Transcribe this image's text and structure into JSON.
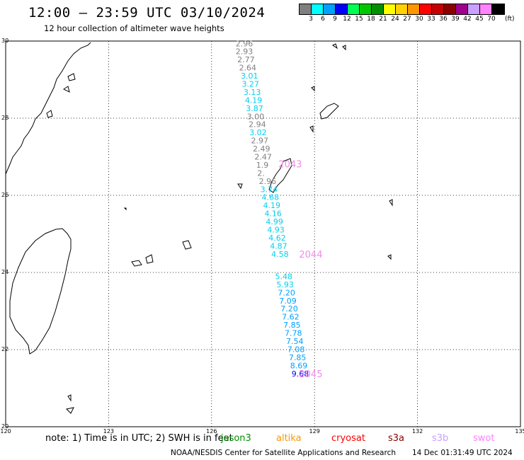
{
  "header": {
    "title": "12:00 – 23:59 UTC 03/10/2024",
    "subtitle": "12 hour collection of altimeter wave heights"
  },
  "colorbar": {
    "colors": [
      "#7f7f7f",
      "#00ffff",
      "#00a0ff",
      "#0000ff",
      "#00ff55",
      "#00c800",
      "#009000",
      "#ffff00",
      "#ffd200",
      "#ff9600",
      "#ff0000",
      "#c80000",
      "#8c0000",
      "#a0008c",
      "#c8a0ff",
      "#ff82ff",
      "#000000"
    ],
    "labels": [
      "3",
      "6",
      "9",
      "12",
      "15",
      "18",
      "21",
      "24",
      "27",
      "30",
      "33",
      "36",
      "39",
      "42",
      "45",
      "70"
    ],
    "unit": "(ft)"
  },
  "map": {
    "lon_range": [
      120,
      135
    ],
    "lat_range": [
      20,
      30
    ],
    "lon_ticks": [
      "120",
      "123",
      "126",
      "129",
      "132",
      "135"
    ],
    "lat_ticks": [
      "30",
      "28",
      "26",
      "24",
      "22",
      "20"
    ],
    "grid": true
  },
  "track": [
    {
      "lon": 126.7,
      "lat": 29.94,
      "label": "2.96",
      "color": "#808080"
    },
    {
      "lon": 126.7,
      "lat": 29.73,
      "label": "2.93",
      "color": "#808080"
    },
    {
      "lon": 126.75,
      "lat": 29.52,
      "label": "2.77",
      "color": "#808080"
    },
    {
      "lon": 126.8,
      "lat": 29.31,
      "label": "2.64",
      "color": "#808080"
    },
    {
      "lon": 126.85,
      "lat": 29.1,
      "label": "3.01",
      "color": "#00d0f0"
    },
    {
      "lon": 126.88,
      "lat": 28.89,
      "label": "3.27",
      "color": "#00d0f0"
    },
    {
      "lon": 126.93,
      "lat": 28.68,
      "label": "3.13",
      "color": "#00d0f0"
    },
    {
      "lon": 126.97,
      "lat": 28.47,
      "label": "4.19",
      "color": "#00d0f0"
    },
    {
      "lon": 127.0,
      "lat": 28.26,
      "label": "3.87",
      "color": "#00d0f0"
    },
    {
      "lon": 127.03,
      "lat": 28.05,
      "label": "3.00",
      "color": "#808080"
    },
    {
      "lon": 127.08,
      "lat": 27.84,
      "label": "2.94",
      "color": "#808080"
    },
    {
      "lon": 127.1,
      "lat": 27.63,
      "label": "3.02",
      "color": "#00d0f0"
    },
    {
      "lon": 127.15,
      "lat": 27.42,
      "label": "2.97",
      "color": "#808080"
    },
    {
      "lon": 127.2,
      "lat": 27.21,
      "label": "2.49",
      "color": "#808080"
    },
    {
      "lon": 127.25,
      "lat": 27.0,
      "label": "2.47",
      "color": "#808080"
    },
    {
      "lon": 127.3,
      "lat": 26.79,
      "label": "1.9",
      "color": "#808080"
    },
    {
      "lon": 127.33,
      "lat": 26.58,
      "label": "2.",
      "color": "#808080"
    },
    {
      "lon": 127.38,
      "lat": 26.37,
      "label": "2.96",
      "color": "#808080"
    },
    {
      "lon": 127.42,
      "lat": 26.16,
      "label": "3.74",
      "color": "#00d0f0"
    },
    {
      "lon": 127.46,
      "lat": 25.95,
      "label": "4.68",
      "color": "#00d0f0"
    },
    {
      "lon": 127.5,
      "lat": 25.74,
      "label": "4.19",
      "color": "#00d0f0"
    },
    {
      "lon": 127.54,
      "lat": 25.53,
      "label": "4.16",
      "color": "#00d0f0"
    },
    {
      "lon": 127.58,
      "lat": 25.32,
      "label": "4.99",
      "color": "#00d0f0"
    },
    {
      "lon": 127.62,
      "lat": 25.11,
      "label": "4.93",
      "color": "#00d0f0"
    },
    {
      "lon": 127.66,
      "lat": 24.9,
      "label": "4.62",
      "color": "#00d0f0"
    },
    {
      "lon": 127.7,
      "lat": 24.69,
      "label": "4.87",
      "color": "#00d0f0"
    },
    {
      "lon": 127.74,
      "lat": 24.48,
      "label": "4.58",
      "color": "#00d0f0"
    },
    {
      "lon": 127.85,
      "lat": 23.9,
      "label": "5.48",
      "color": "#00d0f0"
    },
    {
      "lon": 127.89,
      "lat": 23.69,
      "label": "5.93",
      "color": "#00d0f0"
    },
    {
      "lon": 127.93,
      "lat": 23.48,
      "label": "7.20",
      "color": "#00a0ff"
    },
    {
      "lon": 127.97,
      "lat": 23.27,
      "label": "7.09",
      "color": "#00a0ff"
    },
    {
      "lon": 128.01,
      "lat": 23.06,
      "label": "7.20",
      "color": "#00a0ff"
    },
    {
      "lon": 128.05,
      "lat": 22.85,
      "label": "7.62",
      "color": "#00a0ff"
    },
    {
      "lon": 128.09,
      "lat": 22.64,
      "label": "7.85",
      "color": "#00a0ff"
    },
    {
      "lon": 128.13,
      "lat": 22.43,
      "label": "7.78",
      "color": "#00a0ff"
    },
    {
      "lon": 128.17,
      "lat": 22.22,
      "label": "7.54",
      "color": "#00a0ff"
    },
    {
      "lon": 128.21,
      "lat": 22.01,
      "label": "7.08",
      "color": "#00a0ff"
    },
    {
      "lon": 128.25,
      "lat": 21.8,
      "label": "7.85",
      "color": "#00a0ff"
    },
    {
      "lon": 128.29,
      "lat": 21.59,
      "label": "8.69",
      "color": "#00a0ff"
    },
    {
      "lon": 128.33,
      "lat": 21.38,
      "label": "9.68",
      "color": "#0000ff"
    }
  ],
  "time_labels": [
    {
      "lon": 127.95,
      "lat": 26.82,
      "label": "2043"
    },
    {
      "lon": 128.55,
      "lat": 24.48,
      "label": "2044"
    },
    {
      "lon": 128.55,
      "lat": 21.38,
      "label": "2045"
    }
  ],
  "time_label_color": "#f08ce6",
  "footer": {
    "note": "note: 1) Time is in UTC; 2) SWH is in feet",
    "satellites": [
      {
        "name": "jason3",
        "color": "#009000"
      },
      {
        "name": "altika",
        "color": "#ff9600"
      },
      {
        "name": "cryosat",
        "color": "#ff0000"
      },
      {
        "name": "s3a",
        "color": "#8c0000"
      },
      {
        "name": "s3b",
        "color": "#c8a0ff"
      },
      {
        "name": "swot",
        "color": "#ff82ff"
      }
    ],
    "credit": "NOAA/NESDIS Center for Satellite Applications and Research",
    "datetime": "14 Dec 01:31:49 UTC 2024"
  }
}
